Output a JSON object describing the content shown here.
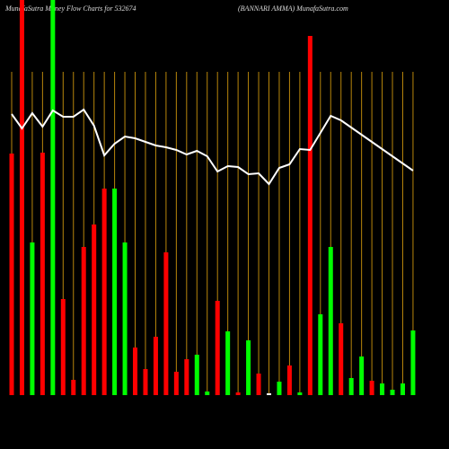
{
  "chart_data": {
    "type": "bar",
    "title": "MunafaSutra  Money Flow  Charts for 532674",
    "subtitle": "(BANNARI AMMA) MunafaSutra.com",
    "categories": [
      null,
      null,
      null,
      null,
      null,
      null,
      null,
      null,
      null,
      null,
      null,
      null,
      null,
      null,
      null,
      null,
      null,
      null,
      null,
      null,
      null,
      null,
      null,
      null,
      null,
      null,
      null,
      null,
      null,
      null,
      null,
      null,
      null,
      null,
      null,
      null,
      null,
      null,
      null,
      null
    ],
    "series": [
      {
        "values": [
          269,
          440,
          170,
          270,
          440,
          107,
          17,
          165,
          190,
          230,
          230,
          170,
          53,
          29,
          65,
          159,
          26,
          40,
          45,
          4,
          105,
          71,
          3,
          61,
          24,
          2,
          15,
          33,
          3,
          400,
          90,
          165,
          80,
          19,
          43,
          16,
          13,
          6,
          13,
          72
        ],
        "colors": [
          "#ff0000",
          "#ff0000",
          "#00ff00",
          "#ff0000",
          "#00ff00",
          "#ff0000",
          "#ff0000",
          "#ff0000",
          "#ff0000",
          "#ff0000",
          "#00ff00",
          "#00ff00",
          "#ff0000",
          "#ff0000",
          "#ff0000",
          "#ff0000",
          "#ff0000",
          "#ff0000",
          "#00ff00",
          "#00ff00",
          "#ff0000",
          "#00ff00",
          "#ff0000",
          "#00ff00",
          "#ff0000",
          "#ffffff",
          "#00ff00",
          "#ff0000",
          "#00ff00",
          "#ff0000",
          "#00ff00",
          "#00ff00",
          "#ff0000",
          "#00ff00",
          "#00ff00",
          "#ff0000",
          "#00ff00",
          "#00ff00",
          "#00ff00",
          "#00ff00"
        ]
      },
      {
        "type": "line",
        "color": "#ffffff",
        "values": [
          313,
          297,
          314,
          299,
          317,
          310,
          310,
          318,
          300,
          267,
          280,
          288,
          286,
          282,
          278,
          276,
          273,
          268,
          272,
          266,
          249,
          255,
          254,
          246,
          247,
          235,
          253,
          257,
          274,
          273,
          292,
          311,
          306,
          298,
          290,
          282,
          274,
          266,
          258,
          250
        ]
      }
    ],
    "ylim": [
      0,
      440
    ],
    "grid_color": "#b8860b"
  }
}
